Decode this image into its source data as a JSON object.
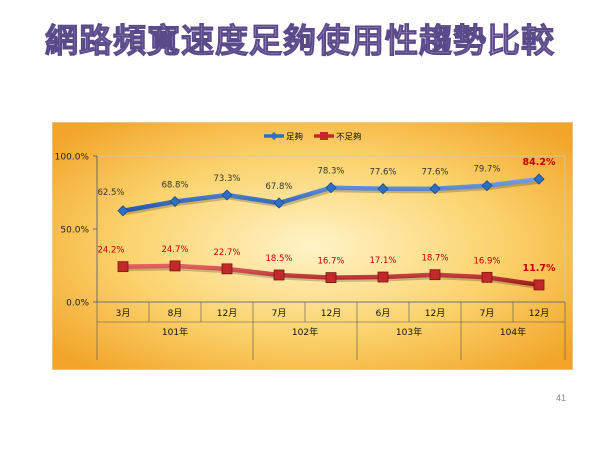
{
  "slide": {
    "title": "網路頻寬速度足夠使用性趨勢比較",
    "page_number": "41"
  },
  "colors": {
    "title_fill": "#b9a9dc",
    "series_1": "#2e6fc4",
    "series_2": "#c22a2a",
    "label_1": "#333333",
    "label_2": "#c00000",
    "background_gold": "#f5b532"
  },
  "chart_data": {
    "type": "line",
    "title": "",
    "xlabel": "",
    "ylabel": "",
    "ylim": [
      0,
      100
    ],
    "yticks": [
      "0.0%",
      "50.0%",
      "100.0%"
    ],
    "grid": false,
    "legend_position": "top",
    "categories": [
      "3月",
      "8月",
      "12月",
      "7月",
      "12月",
      "6月",
      "12月",
      "7月",
      "12月"
    ],
    "groups": [
      {
        "label": "101年",
        "span": 3
      },
      {
        "label": "102年",
        "span": 2
      },
      {
        "label": "103年",
        "span": 2
      },
      {
        "label": "104年",
        "span": 2
      }
    ],
    "series": [
      {
        "name": "足夠",
        "values": [
          62.5,
          68.8,
          73.3,
          67.8,
          78.3,
          77.6,
          77.6,
          79.7,
          84.2
        ],
        "labels": [
          "62.5%",
          "68.8%",
          "73.3%",
          "67.8%",
          "78.3%",
          "77.6%",
          "77.6%",
          "79.7%",
          "84.2%"
        ]
      },
      {
        "name": "不足夠",
        "values": [
          24.2,
          24.7,
          22.7,
          18.5,
          16.7,
          17.1,
          18.7,
          16.9,
          11.7
        ],
        "labels": [
          "24.2%",
          "24.7%",
          "22.7%",
          "18.5%",
          "16.7%",
          "17.1%",
          "18.7%",
          "16.9%",
          "11.7%"
        ]
      }
    ]
  }
}
